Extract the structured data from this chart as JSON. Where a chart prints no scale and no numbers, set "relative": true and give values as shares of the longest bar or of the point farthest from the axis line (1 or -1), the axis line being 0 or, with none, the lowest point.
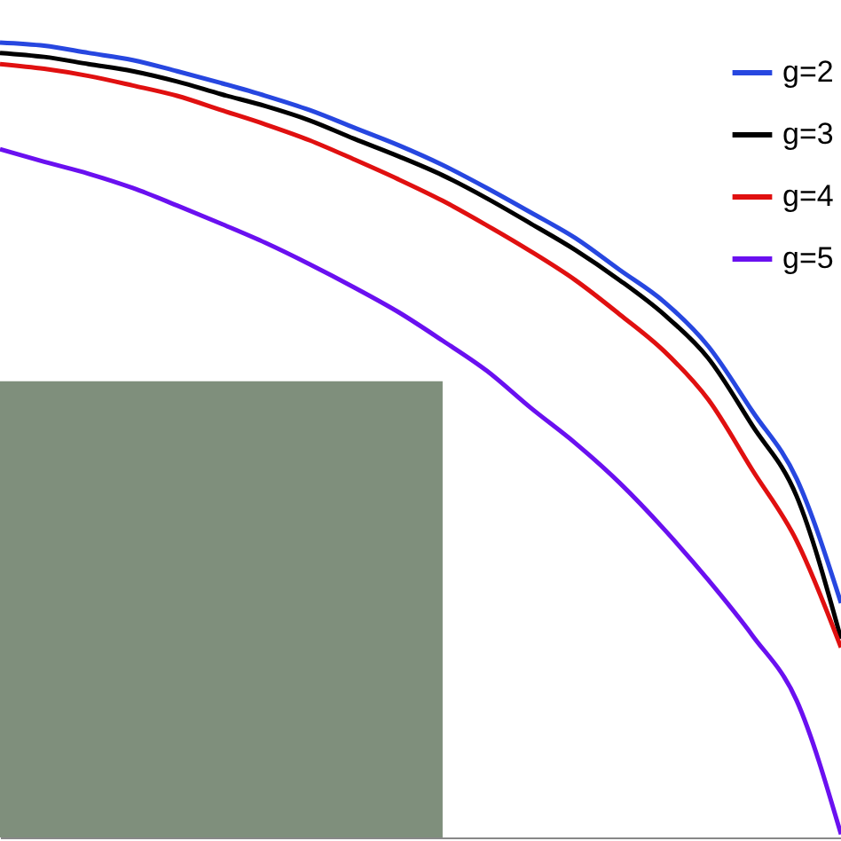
{
  "chart_data": {
    "type": "line",
    "relative": true,
    "legend": "top right",
    "categories": [
      null,
      null,
      null,
      null,
      null,
      null,
      null,
      null,
      null,
      null,
      null,
      null,
      null,
      null,
      null,
      null,
      null,
      null,
      null,
      null
    ],
    "series": [
      {
        "type": "area",
        "color": "#7f8f7c",
        "values": [
          0.574,
          0.574,
          0.574,
          0.574,
          0.574,
          0.574,
          0.574,
          0.574,
          0.574,
          0.574,
          0.574,
          null,
          null,
          null,
          null,
          null,
          null,
          null,
          null,
          null
        ]
      },
      {
        "name": "g=2",
        "color": "#2747e0",
        "values": [
          1,
          0.996,
          0.987,
          0.978,
          0.964,
          0.949,
          0.933,
          0.915,
          0.893,
          0.871,
          0.846,
          0.817,
          0.786,
          0.754,
          0.714,
          0.674,
          0.618,
          0.536,
          0.451,
          0.295
        ]
      },
      {
        "name": "g=3",
        "color": "#000000",
        "values": [
          0.987,
          0.982,
          0.973,
          0.964,
          0.951,
          0.935,
          0.92,
          0.902,
          0.879,
          0.857,
          0.833,
          0.804,
          0.772,
          0.739,
          0.701,
          0.658,
          0.603,
          0.518,
          0.429,
          0.25
        ]
      },
      {
        "name": "g=4",
        "color": "#e01010",
        "values": [
          0.973,
          0.967,
          0.958,
          0.946,
          0.933,
          0.915,
          0.897,
          0.877,
          0.853,
          0.828,
          0.801,
          0.77,
          0.737,
          0.701,
          0.658,
          0.612,
          0.551,
          0.462,
          0.373,
          0.239
        ]
      },
      {
        "name": "g=5",
        "color": "#6a10f0",
        "values": [
          0.866,
          0.85,
          0.835,
          0.817,
          0.795,
          0.772,
          0.748,
          0.721,
          0.692,
          0.661,
          0.625,
          0.587,
          0.54,
          0.496,
          0.446,
          0.388,
          0.324,
          0.254,
          0.172,
          0.004
        ]
      }
    ]
  }
}
